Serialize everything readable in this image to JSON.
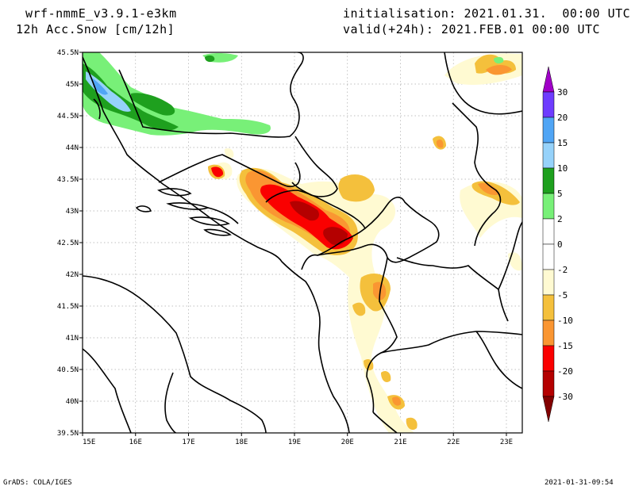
{
  "header": {
    "model": "wrf-nmmE_v3.9.1-e3km",
    "variable": "12h Acc.Snow [cm/12h]",
    "init": "initialisation: 2021.01.31.  00:00 UTC",
    "valid": "valid(+24h): 2021.FEB.01 00:00 UTC"
  },
  "map": {
    "lon_range": [
      15,
      23.3
    ],
    "lat_range": [
      39.5,
      45.5
    ],
    "lon_ticks": [
      {
        "value": 15,
        "label": "15E"
      },
      {
        "value": 16,
        "label": "16E"
      },
      {
        "value": 17,
        "label": "17E"
      },
      {
        "value": 18,
        "label": "18E"
      },
      {
        "value": 19,
        "label": "19E"
      },
      {
        "value": 20,
        "label": "20E"
      },
      {
        "value": 21,
        "label": "21E"
      },
      {
        "value": 22,
        "label": "22E"
      },
      {
        "value": 23,
        "label": "23E"
      }
    ],
    "lat_ticks": [
      {
        "value": 39.5,
        "label": "39.5N"
      },
      {
        "value": 40,
        "label": "40N"
      },
      {
        "value": 40.5,
        "label": "40.5N"
      },
      {
        "value": 41,
        "label": "41N"
      },
      {
        "value": 41.5,
        "label": "41.5N"
      },
      {
        "value": 42,
        "label": "42N"
      },
      {
        "value": 42.5,
        "label": "42.5N"
      },
      {
        "value": 43,
        "label": "43N"
      },
      {
        "value": 43.5,
        "label": "43.5N"
      },
      {
        "value": 44,
        "label": "44N"
      },
      {
        "value": 44.5,
        "label": "44.5N"
      },
      {
        "value": 45,
        "label": "45N"
      },
      {
        "value": 45.5,
        "label": "45.5N"
      }
    ],
    "grid_lines": true,
    "colors": {
      "neg_2_5": "#fffad2",
      "neg_5_10": "#f4c03c",
      "neg_10_15": "#fa9632",
      "neg_15_20": "#fa0000",
      "neg_20_30": "#b40000",
      "pos_2_5": "#78f078",
      "pos_5_10": "#1ea01e",
      "pos_10_15": "#96d2fa",
      "pos_15_20": "#50a5f5"
    }
  },
  "colorbar": {
    "labels": [
      "30",
      "20",
      "15",
      "10",
      "5",
      "2",
      "0",
      "-2",
      "-5",
      "-10",
      "-15",
      "-20",
      "-30"
    ],
    "colors": [
      "#a000c8",
      "#6e3cff",
      "#50a5f5",
      "#96d2fa",
      "#1ea01e",
      "#78f078",
      "#ffffff",
      "#ffffff",
      "#fffad2",
      "#f4c03c",
      "#fa9632",
      "#fa0000",
      "#b40000",
      "#820000"
    ]
  },
  "footer": {
    "left": "GrADS: COLA/IGES",
    "right": "2021-01-31-09:54"
  }
}
